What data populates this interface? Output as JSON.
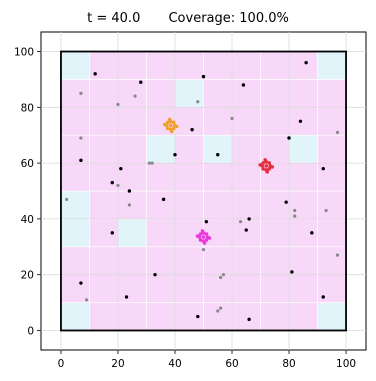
{
  "chart_data": {
    "type": "scatter",
    "title_time": "t =  40.0",
    "title_coverage": "Coverage: 100.0%",
    "xlim": [
      -7,
      107
    ],
    "ylim": [
      -7,
      107
    ],
    "xticks": [
      0,
      20,
      40,
      60,
      80,
      100
    ],
    "yticks": [
      0,
      20,
      40,
      60,
      80,
      100
    ],
    "area": [
      0,
      100
    ],
    "grid": {
      "cell": 10,
      "n": 10
    },
    "grid_lines": true,
    "colors": {
      "coverage_cell": "#f8d8f8",
      "low_coverage_cell": "#e0f4fa",
      "boundary": "#000000",
      "grid_line": "#d9d9d9",
      "target": "#000000",
      "visited_target": "#888888",
      "agent_orange": "#f0a030",
      "agent_red": "#e33040",
      "agent_magenta": "#e83ad8"
    },
    "low_coverage_cells": [
      [
        0,
        9
      ],
      [
        9,
        9
      ],
      [
        4,
        8
      ],
      [
        3,
        6
      ],
      [
        5,
        6
      ],
      [
        8,
        6
      ],
      [
        0,
        4
      ],
      [
        0,
        3
      ],
      [
        2,
        3
      ],
      [
        0,
        0
      ],
      [
        9,
        0
      ]
    ],
    "targets": [
      [
        12,
        92
      ],
      [
        28,
        89
      ],
      [
        50,
        91
      ],
      [
        64,
        88
      ],
      [
        86,
        96
      ],
      [
        46,
        72
      ],
      [
        84,
        75
      ],
      [
        80,
        69
      ],
      [
        7,
        61
      ],
      [
        21,
        58
      ],
      [
        55,
        63
      ],
      [
        40,
        63
      ],
      [
        92,
        58
      ],
      [
        18,
        53
      ],
      [
        24,
        50
      ],
      [
        36,
        47
      ],
      [
        79,
        46
      ],
      [
        51,
        39
      ],
      [
        66,
        40
      ],
      [
        88,
        35
      ],
      [
        18,
        35
      ],
      [
        65,
        36
      ],
      [
        33,
        20
      ],
      [
        81,
        21
      ],
      [
        7,
        17
      ],
      [
        23,
        12
      ],
      [
        92,
        12
      ],
      [
        66,
        4
      ],
      [
        48,
        5
      ]
    ],
    "visited_targets": [
      [
        7,
        85
      ],
      [
        20,
        81
      ],
      [
        26,
        84
      ],
      [
        48,
        82
      ],
      [
        60,
        76
      ],
      [
        7,
        69
      ],
      [
        97,
        71
      ],
      [
        40,
        63
      ],
      [
        32,
        60
      ],
      [
        20,
        52
      ],
      [
        24,
        45
      ],
      [
        93,
        43
      ],
      [
        82,
        43
      ],
      [
        63,
        39
      ],
      [
        82,
        41
      ],
      [
        97,
        27
      ],
      [
        50,
        29
      ],
      [
        57,
        20
      ],
      [
        56,
        19
      ],
      [
        9,
        11
      ],
      [
        56,
        8
      ],
      [
        55,
        7
      ],
      [
        2,
        47
      ],
      [
        31,
        60
      ]
    ],
    "agents": [
      {
        "color_key": "agent_orange",
        "x": 38.5,
        "y": 73.5
      },
      {
        "color_key": "agent_red",
        "x": 72,
        "y": 59
      },
      {
        "color_key": "agent_magenta",
        "x": 50,
        "y": 33.5
      }
    ]
  }
}
